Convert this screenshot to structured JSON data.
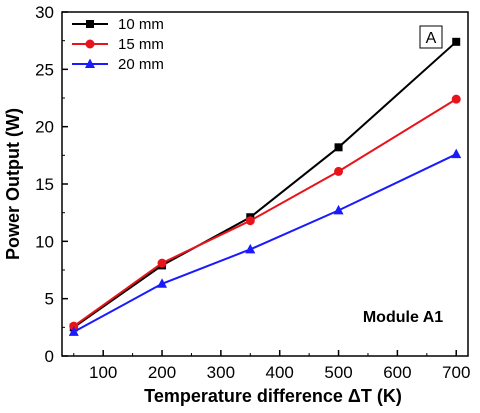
{
  "chart_data": {
    "type": "line",
    "x": [
      50,
      200,
      350,
      500,
      700
    ],
    "xlabel": "Temperature difference ΔT (K)",
    "ylabel": "Power Output (W)",
    "xlim": [
      30,
      720
    ],
    "ylim": [
      0,
      30
    ],
    "xticks": [
      100,
      200,
      300,
      400,
      500,
      600,
      700
    ],
    "yticks": [
      0,
      5,
      10,
      15,
      20,
      25,
      30
    ],
    "grid": false,
    "legend_position": "top-left",
    "series": [
      {
        "name": "10 mm",
        "values": [
          2.5,
          7.9,
          12.1,
          18.2,
          27.4
        ],
        "color": "#000000",
        "marker": "square"
      },
      {
        "name": "15 mm",
        "values": [
          2.6,
          8.1,
          11.8,
          16.1,
          22.4
        ],
        "color": "#e8141b",
        "marker": "circle"
      },
      {
        "name": "20 mm",
        "values": [
          2.1,
          6.3,
          9.3,
          12.7,
          17.6
        ],
        "color": "#1a1aff",
        "marker": "triangle"
      }
    ],
    "annotations": [
      {
        "text": "Module A1",
        "position": "bottom-right"
      },
      {
        "text": "A",
        "position": "top-right-boxed"
      }
    ]
  }
}
